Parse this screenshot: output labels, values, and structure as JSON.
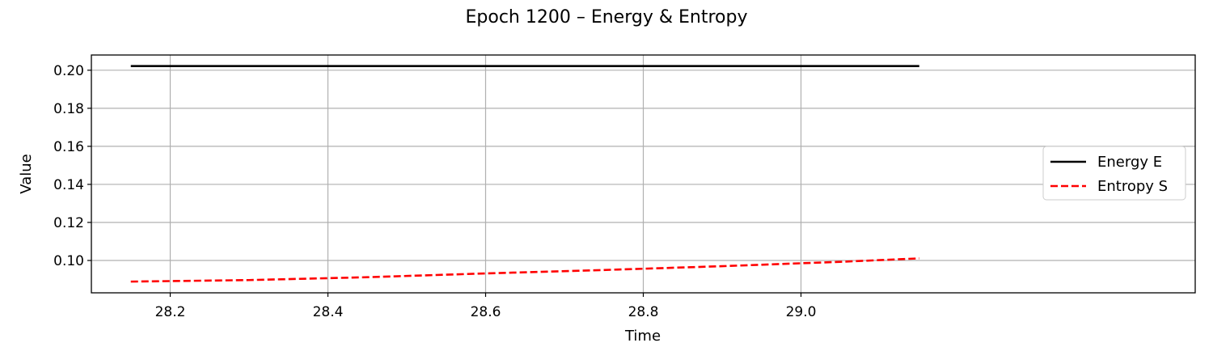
{
  "chart_data": {
    "type": "line",
    "title": "Epoch 1200 – Energy & Entropy",
    "xlabel": "Time",
    "ylabel": "Value",
    "xlim": [
      28.1,
      29.5
    ],
    "ylim": [
      0.083,
      0.208
    ],
    "xticks": [
      28.2,
      28.4,
      28.6,
      28.8,
      29.0
    ],
    "xtick_labels": [
      "28.2",
      "28.4",
      "28.6",
      "28.8",
      "29.0"
    ],
    "yticks": [
      0.1,
      0.12,
      0.14,
      0.16,
      0.18,
      0.2
    ],
    "ytick_labels": [
      "0.10",
      "0.12",
      "0.14",
      "0.16",
      "0.18",
      "0.20"
    ],
    "grid": true,
    "legend_position": "center-right",
    "series": [
      {
        "name": "Energy E",
        "color": "#000000",
        "style": "solid",
        "x": [
          28.15,
          28.3,
          28.45,
          28.6,
          28.75,
          28.9,
          29.05,
          29.15
        ],
        "y": [
          0.2022,
          0.2022,
          0.2022,
          0.2022,
          0.2022,
          0.2022,
          0.2022,
          0.2022
        ]
      },
      {
        "name": "Entropy S",
        "color": "#ff0000",
        "style": "dashed",
        "x": [
          28.15,
          28.3,
          28.45,
          28.6,
          28.75,
          28.9,
          29.05,
          29.15
        ],
        "y": [
          0.0889,
          0.0897,
          0.0912,
          0.0932,
          0.095,
          0.097,
          0.0993,
          0.1011
        ]
      }
    ]
  }
}
